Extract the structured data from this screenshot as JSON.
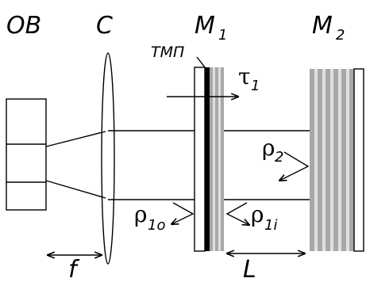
{
  "labels": {
    "ob": "OB",
    "c": "C",
    "m1": "M",
    "m1_sub": "1",
    "m2": "M",
    "m2_sub": "2",
    "tmp": "ТМП",
    "tau": "τ",
    "tau_sub": "1",
    "rho2": "ρ",
    "rho2_sub": "2",
    "rho1o": "ρ",
    "rho1o_sub": "1o",
    "rho1i": "ρ",
    "rho1i_sub": "1i",
    "f": "f",
    "L": "L"
  }
}
